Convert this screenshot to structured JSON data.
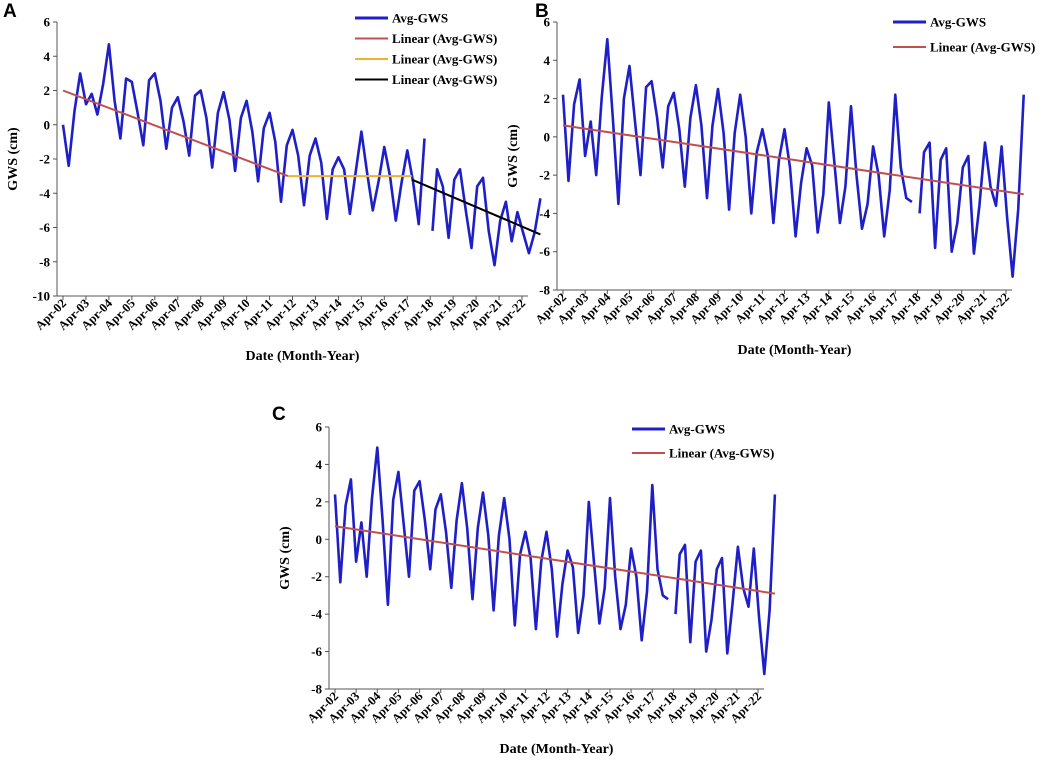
{
  "chart_data": [
    {
      "panel": "A",
      "type": "line",
      "xlabel": "Date (Month-Year)",
      "ylabel": "GWS (cm)",
      "ylim": [
        -10,
        6
      ],
      "yticks": [
        "-10",
        "-8",
        "-6",
        "-4",
        "-2",
        "0",
        "2",
        "4",
        "6"
      ],
      "xticks": [
        "Apr-02",
        "Apr-03",
        "Apr-04",
        "Apr-05",
        "Apr-06",
        "Apr-07",
        "Apr-08",
        "Apr-09",
        "Apr-10",
        "Apr-11",
        "Apr-12",
        "Apr-13",
        "Apr-14",
        "Apr-15",
        "Apr-16",
        "Apr-17",
        "Apr-18",
        "Apr-19",
        "Apr-20",
        "Apr-21",
        "Apr-22"
      ],
      "legend": [
        "Avg-GWS",
        "Linear (Avg-GWS)",
        "Linear (Avg-GWS)",
        "Linear (Avg-GWS)"
      ],
      "legend_colors": [
        "#1f1fc8",
        "#c0504d",
        "#f0b030",
        "#000000"
      ],
      "series": [
        {
          "name": "Avg-GWS",
          "color": "#1f1fc8",
          "segments": [
            {
              "x": [
                0,
                0.25,
                0.5,
                0.75,
                1,
                1.25,
                1.5,
                1.75,
                2,
                2.25,
                2.5,
                2.75,
                3,
                3.25,
                3.5,
                3.75,
                4,
                4.25,
                4.5,
                4.75,
                5,
                5.25,
                5.5,
                5.75,
                6,
                6.25,
                6.5,
                6.75,
                7,
                7.25,
                7.5,
                7.75,
                8,
                8.25,
                8.5,
                8.75,
                9,
                9.25,
                9.5,
                9.75,
                10,
                10.25,
                10.5,
                10.75,
                11,
                11.25,
                11.5,
                11.75,
                12,
                12.25,
                12.5,
                12.75,
                13,
                13.25,
                13.5,
                13.75,
                14,
                14.25,
                14.5,
                14.75,
                15,
                15.25,
                15.5,
                15.75
              ],
              "y": [
                0,
                -2.4,
                0.8,
                3,
                1.2,
                1.8,
                0.6,
                2.4,
                4.7,
                1.4,
                -0.8,
                2.7,
                2.5,
                0.7,
                -1.2,
                2.6,
                3,
                1.4,
                -1.4,
                1,
                1.6,
                0.2,
                -1.8,
                1.7,
                2,
                0.4,
                -2.5,
                0.7,
                1.9,
                0.3,
                -2.7,
                0.4,
                1.4,
                -0.4,
                -3.3,
                -0.2,
                0.7,
                -1,
                -4.5,
                -1.2,
                -0.3,
                -1.8,
                -4.7,
                -1.8,
                -0.8,
                -2.2,
                -5.5,
                -2.6,
                -1.9,
                -2.6,
                -5.2,
                -2.8,
                -0.4,
                -2.8,
                -5,
                -3.3,
                -1.3,
                -3,
                -5.6,
                -3.4,
                -1.5,
                -3.3,
                -5.8,
                -0.8
              ]
            },
            {
              "x": [
                16.1,
                16.3,
                16.55,
                16.8,
                17.05,
                17.3,
                17.55,
                17.8,
                18.05,
                18.3,
                18.55,
                18.8,
                19.05,
                19.3,
                19.55,
                19.8,
                20.05,
                20.3,
                20.55,
                20.8
              ],
              "y": [
                -6.2,
                -2.6,
                -3.6,
                -6.6,
                -3.2,
                -2.6,
                -5,
                -7.2,
                -3.6,
                -3.1,
                -6.2,
                -8.2,
                -5.6,
                -4.5,
                -6.8,
                -5.1,
                -6.3,
                -7.5,
                -6.3,
                -4.3
              ]
            }
          ]
        },
        {
          "name": "Linear (Avg-GWS)",
          "color": "#c0504d",
          "x": [
            0,
            9.8
          ],
          "y": [
            2,
            -3
          ]
        },
        {
          "name": "Linear (Avg-GWS)",
          "color": "#f0b030",
          "x": [
            9.8,
            15.2
          ],
          "y": [
            -3,
            -3
          ]
        },
        {
          "name": "Linear (Avg-GWS)",
          "color": "#000000",
          "x": [
            15.2,
            20.8
          ],
          "y": [
            -3.2,
            -6.4
          ]
        }
      ]
    },
    {
      "panel": "B",
      "type": "line",
      "xlabel": "Date (Month-Year)",
      "ylabel": "GWS (cm)",
      "ylim": [
        -8,
        6
      ],
      "yticks": [
        "-8",
        "-6",
        "-4",
        "-2",
        "0",
        "2",
        "4",
        "6"
      ],
      "xticks": [
        "Apr-02",
        "Apr-03",
        "Apr-04",
        "Apr-05",
        "Apr-06",
        "Apr-07",
        "Apr-08",
        "Apr-09",
        "Apr-10",
        "Apr-11",
        "Apr-12",
        "Apr-13",
        "Apr-14",
        "Apr-15",
        "Apr-16",
        "Apr-17",
        "Apr-18",
        "Apr-19",
        "Apr-20",
        "Apr-21",
        "Apr-22"
      ],
      "legend": [
        "Avg-GWS",
        "Linear (Avg-GWS)"
      ],
      "legend_colors": [
        "#1f1fc8",
        "#c0504d"
      ],
      "series": [
        {
          "name": "Avg-GWS",
          "color": "#1f1fc8",
          "segments": [
            {
              "x": [
                0,
                0.25,
                0.5,
                0.75,
                1,
                1.25,
                1.5,
                1.75,
                2,
                2.25,
                2.5,
                2.75,
                3,
                3.25,
                3.5,
                3.75,
                4,
                4.25,
                4.5,
                4.75,
                5,
                5.25,
                5.5,
                5.75,
                6,
                6.25,
                6.5,
                6.75,
                7,
                7.25,
                7.5,
                7.75,
                8,
                8.25,
                8.5,
                8.75,
                9,
                9.25,
                9.5,
                9.75,
                10,
                10.25,
                10.5,
                10.75,
                11,
                11.25,
                11.5,
                11.75,
                12,
                12.25,
                12.5,
                12.75,
                13,
                13.25,
                13.5,
                13.75,
                14,
                14.25,
                14.5,
                14.75,
                15,
                15.25,
                15.5,
                15.75
              ],
              "y": [
                2.2,
                -2.3,
                1.7,
                3,
                -1,
                0.8,
                -2,
                2.1,
                5.1,
                1,
                -3.5,
                2,
                3.7,
                0.8,
                -2,
                2.6,
                2.9,
                1,
                -1.6,
                1.6,
                2.3,
                0.4,
                -2.6,
                1,
                2.7,
                0.6,
                -3.2,
                0.6,
                2.5,
                0.2,
                -3.8,
                0.2,
                2.2,
                0,
                -4,
                -0.8,
                0.4,
                -1,
                -4.5,
                -1.2,
                0.4,
                -1.6,
                -5.2,
                -2.4,
                -0.6,
                -1.5,
                -5,
                -3,
                1.8,
                -1.3,
                -4.5,
                -2.6,
                1.6,
                -2,
                -4.8,
                -3.5,
                -0.5,
                -2,
                -5.2,
                -2.8,
                2.2,
                -1.6,
                -3.2,
                -3.4
              ]
            },
            {
              "x": [
                16.1,
                16.3,
                16.55,
                16.8,
                17.05,
                17.3,
                17.55,
                17.8,
                18.05,
                18.3,
                18.55,
                18.8,
                19.05,
                19.3,
                19.55,
                19.8,
                20.05,
                20.3,
                20.55,
                20.8
              ],
              "y": [
                -4,
                -0.8,
                -0.3,
                -5.8,
                -1.2,
                -0.6,
                -6,
                -4.5,
                -1.6,
                -1,
                -6.1,
                -3.6,
                -0.3,
                -2.6,
                -3.6,
                -0.5,
                -4.2,
                -7.3,
                -3.8,
                2.2
              ]
            }
          ]
        },
        {
          "name": "Linear (Avg-GWS)",
          "color": "#c0504d",
          "x": [
            0,
            20.8
          ],
          "y": [
            0.6,
            -3
          ]
        }
      ]
    },
    {
      "panel": "C",
      "type": "line",
      "xlabel": "Date (Month-Year)",
      "ylabel": "GWS (cm)",
      "ylim": [
        -8,
        6
      ],
      "yticks": [
        "-8",
        "-6",
        "-4",
        "-2",
        "0",
        "2",
        "4",
        "6"
      ],
      "xticks": [
        "Apr-02",
        "Apr-03",
        "Apr-04",
        "Apr-05",
        "Apr-06",
        "Apr-07",
        "Apr-08",
        "Apr-09",
        "Apr-10",
        "Apr-11",
        "Apr-12",
        "Apr-13",
        "Apr-14",
        "Apr-15",
        "Apr-16",
        "Apr-17",
        "Apr-18",
        "Apr-19",
        "Apr-20",
        "Apr-21",
        "Apr-22"
      ],
      "legend": [
        "Avg-GWS",
        "Linear (Avg-GWS)"
      ],
      "legend_colors": [
        "#1f1fc8",
        "#c0504d"
      ],
      "series": [
        {
          "name": "Avg-GWS",
          "color": "#1f1fc8",
          "segments": [
            {
              "x": [
                0,
                0.25,
                0.5,
                0.75,
                1,
                1.25,
                1.5,
                1.75,
                2,
                2.25,
                2.5,
                2.75,
                3,
                3.25,
                3.5,
                3.75,
                4,
                4.25,
                4.5,
                4.75,
                5,
                5.25,
                5.5,
                5.75,
                6,
                6.25,
                6.5,
                6.75,
                7,
                7.25,
                7.5,
                7.75,
                8,
                8.25,
                8.5,
                8.75,
                9,
                9.25,
                9.5,
                9.75,
                10,
                10.25,
                10.5,
                10.75,
                11,
                11.25,
                11.5,
                11.75,
                12,
                12.25,
                12.5,
                12.75,
                13,
                13.25,
                13.5,
                13.75,
                14,
                14.25,
                14.5,
                14.75,
                15,
                15.25,
                15.5,
                15.75
              ],
              "y": [
                2.4,
                -2.3,
                1.8,
                3.2,
                -1.2,
                0.9,
                -2,
                2.2,
                4.9,
                1,
                -3.5,
                2.1,
                3.6,
                0.8,
                -2,
                2.6,
                3.1,
                1,
                -1.6,
                1.6,
                2.4,
                0.4,
                -2.6,
                1,
                3,
                0.6,
                -3.2,
                0.6,
                2.5,
                0.2,
                -3.8,
                0.2,
                2.2,
                0,
                -4.6,
                -0.8,
                0.4,
                -1,
                -4.8,
                -1.2,
                0.4,
                -1.6,
                -5.2,
                -2.4,
                -0.6,
                -1.5,
                -5,
                -3,
                2,
                -1.3,
                -4.5,
                -2.6,
                2.2,
                -2,
                -4.8,
                -3.5,
                -0.5,
                -2,
                -5.4,
                -2.8,
                2.9,
                -1.6,
                -3,
                -3.2
              ]
            },
            {
              "x": [
                16.1,
                16.3,
                16.55,
                16.8,
                17.05,
                17.3,
                17.55,
                17.8,
                18.05,
                18.3,
                18.55,
                18.8,
                19.05,
                19.3,
                19.55,
                19.8,
                20.05,
                20.3,
                20.55,
                20.8
              ],
              "y": [
                -4,
                -0.8,
                -0.3,
                -5.5,
                -1.2,
                -0.6,
                -6,
                -4.3,
                -1.6,
                -1,
                -6.1,
                -3.4,
                -0.4,
                -2.6,
                -3.6,
                -0.5,
                -4.2,
                -7.2,
                -3.8,
                2.4
              ]
            }
          ]
        },
        {
          "name": "Linear (Avg-GWS)",
          "color": "#c0504d",
          "x": [
            0,
            20.8
          ],
          "y": [
            0.7,
            -2.9
          ]
        }
      ]
    }
  ]
}
